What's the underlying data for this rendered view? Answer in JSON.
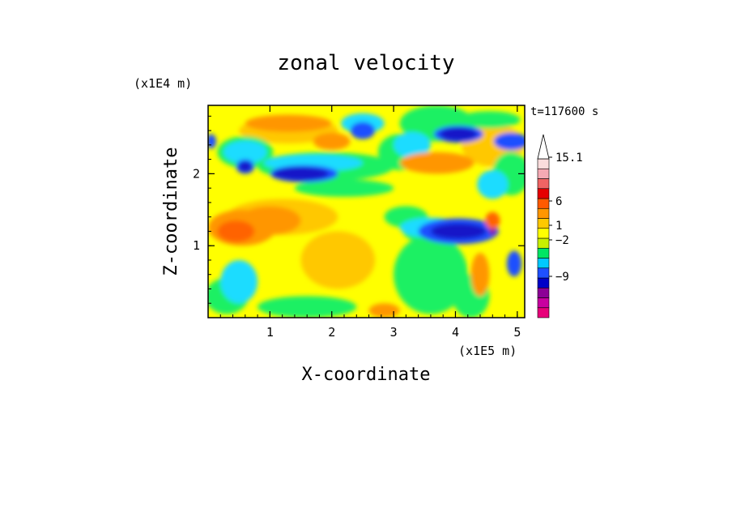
{
  "chart_data": {
    "type": "heatmap",
    "title": "zonal velocity",
    "xlabel": "X-coordinate",
    "ylabel": "Z-coordinate",
    "x_unit_label": "(x1E5 m)",
    "y_unit_label": "(x1E4 m)",
    "time_label": "t=117600 s",
    "x_ticks": [
      "1",
      "2",
      "3",
      "4",
      "5"
    ],
    "y_ticks": [
      "1",
      "2"
    ],
    "xlim": [
      0,
      5.12
    ],
    "ylim": [
      0,
      2.95
    ],
    "colorbar": {
      "labels": [
        "15.1",
        "6",
        "1",
        "-2",
        "-9"
      ],
      "colors": [
        "#e8007a",
        "#c800a0",
        "#8c0096",
        "#0000c8",
        "#1e50ff",
        "#00c8ff",
        "#00e664",
        "#c8f000",
        "#ffff00",
        "#ffc800",
        "#ff9600",
        "#ff5a00",
        "#e60000",
        "#f06464",
        "#f5aab4",
        "#fadcdc"
      ]
    },
    "palette": {
      "dblue": "#1414c8",
      "blue": "#1e50ff",
      "cyan": "#1edcff",
      "green": "#1ef064",
      "lime": "#c8f000",
      "yellow": "#ffff00",
      "gold": "#ffc800",
      "orange": "#ff9600",
      "dorange": "#ff6400",
      "purple": "#8c0096"
    },
    "field": {
      "background": "yellow",
      "blobs": [
        {
          "x": 1.2,
          "z": 1.4,
          "rx": 0.9,
          "rz": 0.25,
          "c": "gold"
        },
        {
          "x": 1.3,
          "z": 2.6,
          "rx": 0.8,
          "rz": 0.18,
          "c": "gold"
        },
        {
          "x": 2.1,
          "z": 0.8,
          "rx": 0.6,
          "rz": 0.4,
          "c": "gold"
        },
        {
          "x": 4.6,
          "z": 2.4,
          "rx": 0.5,
          "rz": 0.3,
          "c": "gold"
        },
        {
          "x": 0.3,
          "z": 0.3,
          "rx": 0.35,
          "rz": 0.25,
          "c": "green"
        },
        {
          "x": 0.5,
          "z": 0.5,
          "rx": 0.3,
          "rz": 0.3,
          "c": "cyan"
        },
        {
          "x": 1.6,
          "z": 0.15,
          "rx": 0.8,
          "rz": 0.15,
          "c": "green"
        },
        {
          "x": 3.6,
          "z": 0.6,
          "rx": 0.6,
          "rz": 0.55,
          "c": "green"
        },
        {
          "x": 4.25,
          "z": 0.3,
          "rx": 0.3,
          "rz": 0.3,
          "c": "green"
        },
        {
          "x": 3.1,
          "z": 2.3,
          "rx": 0.35,
          "rz": 0.25,
          "c": "green"
        },
        {
          "x": 3.7,
          "z": 2.7,
          "rx": 0.6,
          "rz": 0.25,
          "c": "green"
        },
        {
          "x": 3.7,
          "z": 1.2,
          "rx": 0.55,
          "rz": 0.18,
          "c": "green"
        },
        {
          "x": 3.2,
          "z": 1.4,
          "rx": 0.35,
          "rz": 0.15,
          "c": "green"
        },
        {
          "x": 2.2,
          "z": 1.8,
          "rx": 0.8,
          "rz": 0.12,
          "c": "green"
        },
        {
          "x": 1.9,
          "z": 2.1,
          "rx": 1.1,
          "rz": 0.2,
          "c": "green"
        },
        {
          "x": 0.6,
          "z": 2.3,
          "rx": 0.45,
          "rz": 0.22,
          "c": "green"
        },
        {
          "x": 4.55,
          "z": 2.75,
          "rx": 0.5,
          "rz": 0.12,
          "c": "green"
        },
        {
          "x": 4.9,
          "z": 2.0,
          "rx": 0.3,
          "rz": 0.3,
          "c": "green"
        },
        {
          "x": 3.6,
          "z": 1.25,
          "rx": 0.5,
          "rz": 0.14,
          "c": "cyan"
        },
        {
          "x": 3.3,
          "z": 2.4,
          "rx": 0.3,
          "rz": 0.18,
          "c": "cyan"
        },
        {
          "x": 1.7,
          "z": 2.15,
          "rx": 0.8,
          "rz": 0.12,
          "c": "cyan"
        },
        {
          "x": 0.6,
          "z": 2.3,
          "rx": 0.35,
          "rz": 0.16,
          "c": "cyan"
        },
        {
          "x": 2.5,
          "z": 2.7,
          "rx": 0.35,
          "rz": 0.14,
          "c": "cyan"
        },
        {
          "x": 4.6,
          "z": 1.85,
          "rx": 0.25,
          "rz": 0.2,
          "c": "cyan"
        },
        {
          "x": 4.05,
          "z": 1.2,
          "rx": 0.65,
          "rz": 0.18,
          "c": "blue"
        },
        {
          "x": 4.05,
          "z": 2.55,
          "rx": 0.4,
          "rz": 0.12,
          "c": "blue"
        },
        {
          "x": 4.9,
          "z": 2.45,
          "rx": 0.28,
          "rz": 0.12,
          "c": "blue"
        },
        {
          "x": 1.55,
          "z": 2.0,
          "rx": 0.55,
          "rz": 0.12,
          "c": "blue"
        },
        {
          "x": 2.5,
          "z": 2.6,
          "rx": 0.2,
          "rz": 0.12,
          "c": "blue"
        },
        {
          "x": 0.6,
          "z": 2.1,
          "rx": 0.15,
          "rz": 0.1,
          "c": "blue"
        },
        {
          "x": 0.05,
          "z": 2.45,
          "rx": 0.08,
          "rz": 0.1,
          "c": "blue"
        },
        {
          "x": 4.95,
          "z": 0.75,
          "rx": 0.12,
          "rz": 0.18,
          "c": "blue"
        },
        {
          "x": 4.05,
          "z": 1.2,
          "rx": 0.45,
          "rz": 0.11,
          "c": "dblue"
        },
        {
          "x": 4.05,
          "z": 2.55,
          "rx": 0.3,
          "rz": 0.09,
          "c": "dblue"
        },
        {
          "x": 1.5,
          "z": 2.0,
          "rx": 0.45,
          "rz": 0.09,
          "c": "dblue"
        },
        {
          "x": 0.6,
          "z": 2.1,
          "rx": 0.1,
          "rz": 0.07,
          "c": "dblue"
        },
        {
          "x": 4.6,
          "z": 1.2,
          "rx": 0.05,
          "rz": 0.05,
          "c": "purple"
        },
        {
          "x": 0.55,
          "z": 1.25,
          "rx": 0.55,
          "rz": 0.25,
          "c": "orange"
        },
        {
          "x": 1.0,
          "z": 1.35,
          "rx": 0.5,
          "rz": 0.2,
          "c": "orange"
        },
        {
          "x": 1.3,
          "z": 2.7,
          "rx": 0.7,
          "rz": 0.12,
          "c": "orange"
        },
        {
          "x": 2.0,
          "z": 2.45,
          "rx": 0.3,
          "rz": 0.12,
          "c": "orange"
        },
        {
          "x": 3.7,
          "z": 2.15,
          "rx": 0.6,
          "rz": 0.15,
          "c": "orange"
        },
        {
          "x": 4.4,
          "z": 0.6,
          "rx": 0.15,
          "rz": 0.3,
          "c": "orange"
        },
        {
          "x": 2.85,
          "z": 0.1,
          "rx": 0.25,
          "rz": 0.1,
          "c": "orange"
        },
        {
          "x": 0.45,
          "z": 1.2,
          "rx": 0.3,
          "rz": 0.15,
          "c": "dorange"
        },
        {
          "x": 4.6,
          "z": 1.35,
          "rx": 0.12,
          "rz": 0.12,
          "c": "dorange"
        }
      ]
    }
  }
}
